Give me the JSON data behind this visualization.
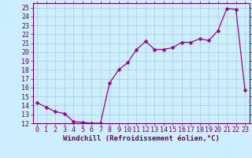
{
  "x": [
    0,
    1,
    2,
    3,
    4,
    5,
    6,
    7,
    8,
    9,
    10,
    11,
    12,
    13,
    14,
    15,
    16,
    17,
    18,
    19,
    20,
    21,
    22,
    23
  ],
  "y": [
    14.3,
    13.8,
    13.3,
    13.1,
    12.2,
    12.1,
    12.0,
    12.0,
    16.5,
    18.0,
    18.8,
    20.3,
    21.2,
    20.3,
    20.3,
    20.5,
    21.1,
    21.1,
    21.5,
    21.3,
    22.4,
    24.9,
    24.8,
    15.7
  ],
  "line_color": "#990099",
  "marker": "D",
  "marker_size": 2.5,
  "bg_color": "#cceeff",
  "grid_color": "#aacccc",
  "xlabel": "Windchill (Refroidissement éolien,°C)",
  "xlim": [
    -0.5,
    23.5
  ],
  "ylim": [
    12,
    25.5
  ],
  "yticks": [
    12,
    13,
    14,
    15,
    16,
    17,
    18,
    19,
    20,
    21,
    22,
    23,
    24,
    25
  ],
  "xticks": [
    0,
    1,
    2,
    3,
    4,
    5,
    6,
    7,
    8,
    9,
    10,
    11,
    12,
    13,
    14,
    15,
    16,
    17,
    18,
    19,
    20,
    21,
    22,
    23
  ],
  "xlabel_fontsize": 6.5,
  "tick_fontsize": 6,
  "label_color": "#660066",
  "spine_color": "#660066"
}
